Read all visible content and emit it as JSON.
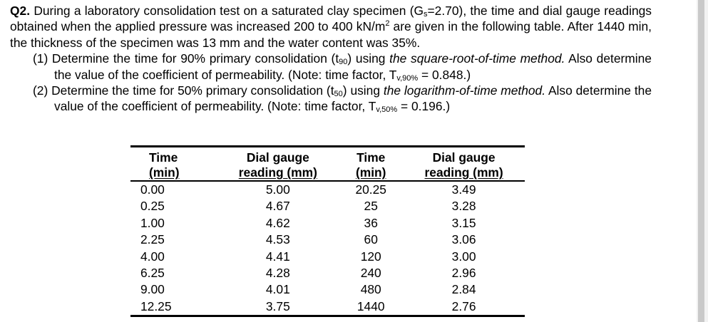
{
  "question": {
    "number": "Q2.",
    "intro": "During a laboratory consolidation test on a saturated clay specimen (G",
    "gs_sub": "s",
    "intro_b": "=2.70), the time and dial gauge readings obtained when the applied pressure was increased 200 to 400 kN/m",
    "sup2": "2",
    "intro_c": " are given in the following table. After 1440 min, the thickness of the specimen was 13 mm and the water content was 35%.",
    "part1": {
      "a": "(1) Determine the time for 90% primary consolidation (t",
      "t_sub": "90",
      "b": ") using ",
      "method": "the square-root-of-time method.",
      "c": " Also determine the value of the coefficient of permeability. (Note: time factor, T",
      "tv_sub": "v,90%",
      "d": " = 0.848.)"
    },
    "part2": {
      "a": "(2) Determine the time for 50% primary consolidation (t",
      "t_sub": "50",
      "b": ") using ",
      "method": "the logarithm-of-time method.",
      "c": " Also determine the value of the coefficient of permeability. (Note: time factor, T",
      "tv_sub": "v,50%",
      "d": " = 0.196.)"
    }
  },
  "table": {
    "headers": [
      {
        "line1": "Time",
        "line2": "(min)"
      },
      {
        "line1": "Dial gauge",
        "line2": "reading (mm)"
      },
      {
        "line1": "Time",
        "line2": "(min)"
      },
      {
        "line1": "Dial gauge",
        "line2": "reading (mm)"
      }
    ],
    "rows": [
      [
        "0.00",
        "5.00",
        "20.25",
        "3.49"
      ],
      [
        "0.25",
        "4.67",
        "25",
        "3.28"
      ],
      [
        "1.00",
        "4.62",
        "36",
        "3.15"
      ],
      [
        "2.25",
        "4.53",
        "60",
        "3.06"
      ],
      [
        "4.00",
        "4.41",
        "120",
        "3.00"
      ],
      [
        "6.25",
        "4.28",
        "240",
        "2.96"
      ],
      [
        "9.00",
        "4.01",
        "480",
        "2.84"
      ],
      [
        "12.25",
        "3.75",
        "1440",
        "2.76"
      ]
    ]
  }
}
